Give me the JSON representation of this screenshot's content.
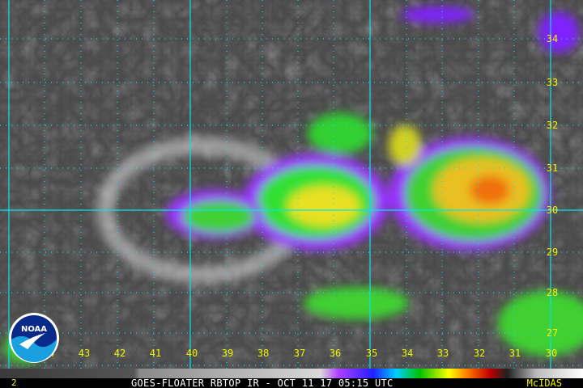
{
  "caption": "GOES-FLOATER RBTOP IR - OCT 11 17 05:15 UTC",
  "software": "McIDAS",
  "frame_number": "2",
  "logo_text": "NOAA",
  "latitude_labels": [
    "34",
    "33",
    "32",
    "31",
    "30",
    "29",
    "28",
    "27"
  ],
  "longitude_labels": [
    "44",
    "43",
    "42",
    "41",
    "40",
    "39",
    "38",
    "37",
    "36",
    "35",
    "34",
    "33",
    "32",
    "31",
    "30"
  ],
  "colors": {
    "grid": "#00e5ee",
    "labels": "#f4f400",
    "background_clouds": "#4a4a4a"
  }
}
